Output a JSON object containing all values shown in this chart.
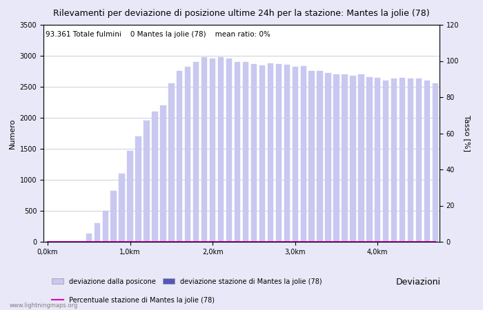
{
  "title": "Rilevamenti per deviazione di posizione ultime 24h per la stazione: Mantes la jolie (78)",
  "subtitle": "93.361 Totale fulmini    0 Mantes la jolie (78)    mean ratio: 0%",
  "ylabel_left": "Numero",
  "ylabel_right": "Tasso [%]",
  "x_labels": [
    "0,0km",
    "1,0km",
    "2,0km",
    "3,0km",
    "4,0km"
  ],
  "x_tick_positions": [
    0,
    10,
    20,
    30,
    40
  ],
  "ylim_left": [
    0,
    3500
  ],
  "ylim_right": [
    0,
    120
  ],
  "yticks_left": [
    0,
    500,
    1000,
    1500,
    2000,
    2500,
    3000,
    3500
  ],
  "yticks_right": [
    0,
    20,
    40,
    60,
    80,
    100,
    120
  ],
  "bar_values": [
    0,
    0,
    0,
    0,
    0,
    130,
    300,
    500,
    820,
    1100,
    1470,
    1700,
    1950,
    2100,
    2200,
    2550,
    2750,
    2820,
    2900,
    2980,
    2960,
    2980,
    2950,
    2900,
    2900,
    2870,
    2840,
    2880,
    2870,
    2860,
    2820,
    2830,
    2750,
    2750,
    2720,
    2700,
    2700,
    2680,
    2700,
    2660,
    2640,
    2600,
    2630,
    2640,
    2630,
    2630,
    2600,
    2550
  ],
  "bar_color_light": "#c8c8f0",
  "bar_color_dark": "#5555bb",
  "line_color": "#dd00bb",
  "line_values": [
    0,
    0,
    0,
    0,
    0,
    0,
    0,
    0,
    0,
    0,
    0,
    0,
    0,
    0,
    0,
    0,
    0,
    0,
    0,
    0,
    0,
    0,
    0,
    0,
    0,
    0,
    0,
    0,
    0,
    0,
    0,
    0,
    0,
    0,
    0,
    0,
    0,
    0,
    0,
    0,
    0,
    0,
    0,
    0,
    0,
    0,
    0,
    0
  ],
  "legend_label_light": "deviazione dalla posicone",
  "legend_label_dark": "deviazione stazione di Mantes la jolie (78)",
  "legend_label_line": "Percentuale stazione di Mantes la jolie (78)",
  "legend_title": "Deviazioni",
  "watermark": "www.lightningmaps.org",
  "fig_color": "#e8e8f8",
  "plot_bg_color": "#ffffff",
  "grid_color": "#bbbbcc",
  "title_fontsize": 9,
  "subtitle_fontsize": 7.5,
  "axis_label_fontsize": 8,
  "tick_fontsize": 7,
  "legend_fontsize": 7,
  "watermark_fontsize": 6
}
